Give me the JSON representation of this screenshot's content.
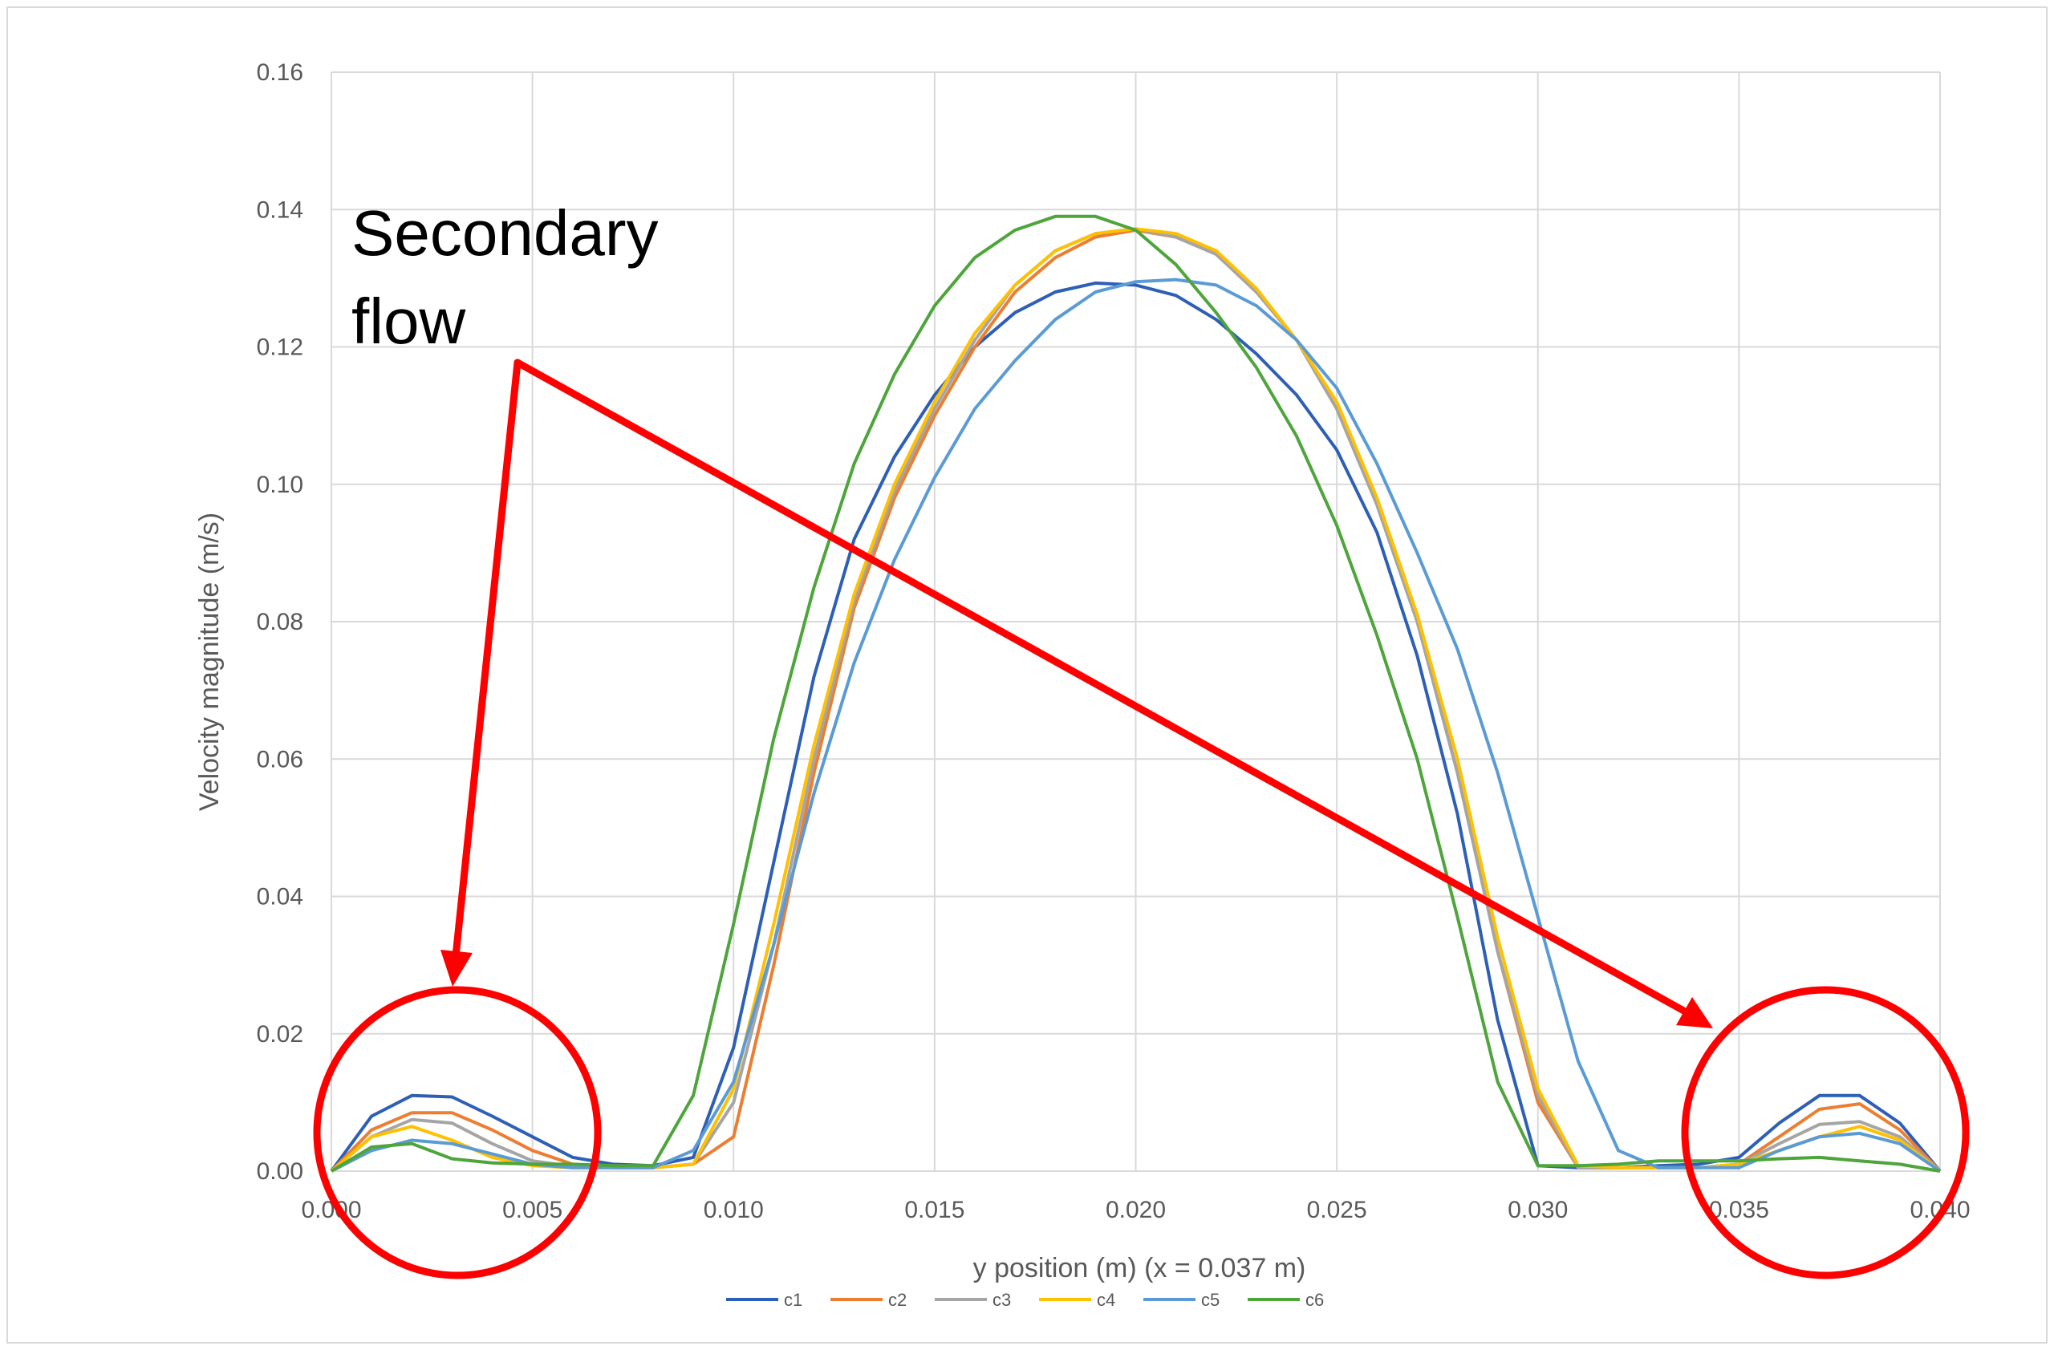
{
  "chart_data": {
    "type": "line",
    "title": "",
    "xlabel": "y position (m) (x = 0.037 m)",
    "ylabel": "Velocity magnitude (m/s)",
    "xlim": [
      0,
      0.04
    ],
    "ylim": [
      0,
      0.16
    ],
    "xticks": [
      "0.000",
      "0.005",
      "0.010",
      "0.015",
      "0.020",
      "0.025",
      "0.030",
      "0.035",
      "0.040"
    ],
    "yticks": [
      "0.00",
      "0.02",
      "0.04",
      "0.06",
      "0.08",
      "0.10",
      "0.12",
      "0.14",
      "0.16"
    ],
    "grid": true,
    "legend_position": "bottom",
    "x": [
      0.0,
      0.001,
      0.002,
      0.003,
      0.004,
      0.005,
      0.006,
      0.007,
      0.008,
      0.009,
      0.01,
      0.011,
      0.012,
      0.013,
      0.014,
      0.015,
      0.016,
      0.017,
      0.018,
      0.019,
      0.02,
      0.021,
      0.022,
      0.023,
      0.024,
      0.025,
      0.026,
      0.027,
      0.028,
      0.029,
      0.03,
      0.031,
      0.032,
      0.033,
      0.034,
      0.035,
      0.036,
      0.037,
      0.038,
      0.039,
      0.04
    ],
    "series": [
      {
        "name": "c1",
        "color": "#2e5fb6",
        "values": [
          0.0,
          0.008,
          0.011,
          0.0108,
          0.008,
          0.005,
          0.002,
          0.001,
          0.0008,
          0.002,
          0.018,
          0.045,
          0.072,
          0.092,
          0.104,
          0.113,
          0.12,
          0.125,
          0.128,
          0.1293,
          0.129,
          0.1275,
          0.124,
          0.119,
          0.113,
          0.105,
          0.093,
          0.075,
          0.052,
          0.022,
          0.0008,
          0.0005,
          0.0005,
          0.0008,
          0.001,
          0.002,
          0.007,
          0.011,
          0.011,
          0.007,
          0.0
        ]
      },
      {
        "name": "c2",
        "color": "#ed7d31",
        "values": [
          0.0,
          0.006,
          0.0085,
          0.0085,
          0.006,
          0.003,
          0.001,
          0.0005,
          0.0005,
          0.001,
          0.005,
          0.03,
          0.058,
          0.082,
          0.098,
          0.11,
          0.12,
          0.128,
          0.133,
          0.136,
          0.137,
          0.136,
          0.1335,
          0.128,
          0.121,
          0.111,
          0.097,
          0.08,
          0.058,
          0.032,
          0.01,
          0.0005,
          0.0005,
          0.0005,
          0.0005,
          0.001,
          0.005,
          0.009,
          0.0098,
          0.006,
          0.0
        ]
      },
      {
        "name": "c3",
        "color": "#a5a5a5",
        "values": [
          0.0,
          0.005,
          0.0075,
          0.007,
          0.004,
          0.0015,
          0.0007,
          0.0005,
          0.0005,
          0.001,
          0.01,
          0.033,
          0.06,
          0.083,
          0.099,
          0.111,
          0.121,
          0.129,
          0.134,
          0.1365,
          0.1372,
          0.136,
          0.1335,
          0.128,
          0.121,
          0.111,
          0.097,
          0.08,
          0.058,
          0.032,
          0.011,
          0.0005,
          0.0005,
          0.0005,
          0.0005,
          0.001,
          0.004,
          0.0068,
          0.0072,
          0.005,
          0.0
        ]
      },
      {
        "name": "c4",
        "color": "#ffc000",
        "values": [
          0.0,
          0.005,
          0.0065,
          0.0045,
          0.002,
          0.0008,
          0.0005,
          0.0005,
          0.0005,
          0.001,
          0.012,
          0.036,
          0.062,
          0.084,
          0.1,
          0.112,
          0.122,
          0.129,
          0.134,
          0.1365,
          0.1372,
          0.1365,
          0.134,
          0.1285,
          0.121,
          0.112,
          0.098,
          0.081,
          0.06,
          0.034,
          0.012,
          0.0008,
          0.0005,
          0.0005,
          0.0005,
          0.001,
          0.003,
          0.005,
          0.0065,
          0.0045,
          0.0
        ]
      },
      {
        "name": "c5",
        "color": "#5b9bd5",
        "values": [
          0.0,
          0.003,
          0.0045,
          0.004,
          0.0025,
          0.001,
          0.0005,
          0.0005,
          0.0005,
          0.003,
          0.013,
          0.033,
          0.055,
          0.074,
          0.089,
          0.101,
          0.111,
          0.118,
          0.124,
          0.128,
          0.1295,
          0.1298,
          0.129,
          0.126,
          0.121,
          0.114,
          0.103,
          0.09,
          0.076,
          0.058,
          0.037,
          0.016,
          0.003,
          0.0005,
          0.0005,
          0.0005,
          0.003,
          0.005,
          0.0055,
          0.004,
          0.0
        ]
      },
      {
        "name": "c6",
        "color": "#4ea53b",
        "values": [
          0.0,
          0.0035,
          0.004,
          0.0018,
          0.0012,
          0.001,
          0.001,
          0.0008,
          0.0008,
          0.011,
          0.036,
          0.063,
          0.085,
          0.103,
          0.116,
          0.126,
          0.133,
          0.137,
          0.139,
          0.139,
          0.137,
          0.132,
          0.125,
          0.117,
          0.107,
          0.094,
          0.078,
          0.06,
          0.037,
          0.013,
          0.0008,
          0.0008,
          0.001,
          0.0015,
          0.0015,
          0.0015,
          0.0018,
          0.002,
          0.0015,
          0.001,
          0.0
        ]
      }
    ],
    "annotations": {
      "text_line1": "Secondary",
      "text_line2": "flow"
    }
  }
}
